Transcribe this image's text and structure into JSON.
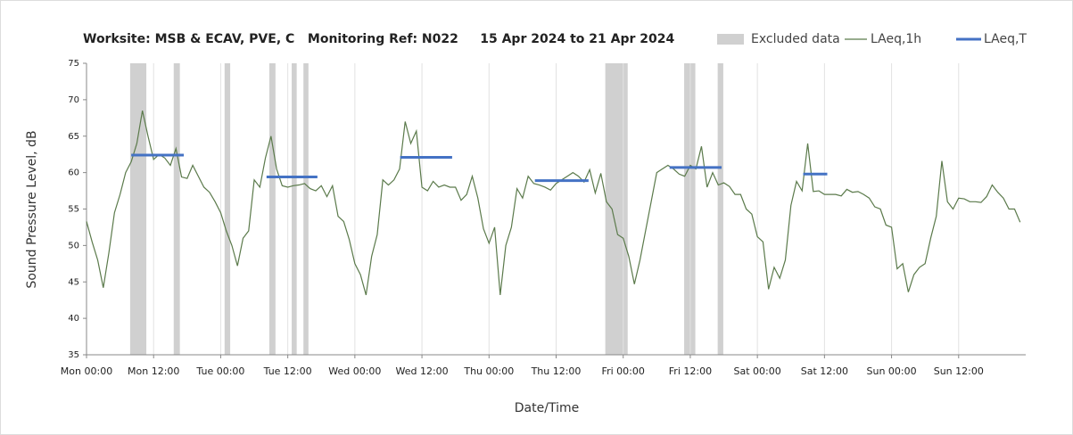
{
  "chart_data": {
    "type": "line",
    "title": "Worksite: MSB & ECAV, PVE, C   Monitoring Ref: N022     15 Apr 2024 to 21 Apr 2024",
    "xlabel": "Date/Time",
    "ylabel": "Sound Pressure Level, dB",
    "xlim": [
      0,
      168
    ],
    "ylim": [
      35,
      75
    ],
    "yticks": [
      35,
      40,
      45,
      50,
      55,
      60,
      65,
      70,
      75
    ],
    "xticks": [
      {
        "value": 0,
        "label": "Mon 00:00"
      },
      {
        "value": 12,
        "label": "Mon 12:00"
      },
      {
        "value": 24,
        "label": "Tue 00:00"
      },
      {
        "value": 36,
        "label": "Tue 12:00"
      },
      {
        "value": 48,
        "label": "Wed 00:00"
      },
      {
        "value": 60,
        "label": "Wed 12:00"
      },
      {
        "value": 72,
        "label": "Thu 00:00"
      },
      {
        "value": 84,
        "label": "Thu 12:00"
      },
      {
        "value": 96,
        "label": "Fri 00:00"
      },
      {
        "value": 108,
        "label": "Fri 12:00"
      },
      {
        "value": 120,
        "label": "Sat 00:00"
      },
      {
        "value": 132,
        "label": "Sat 12:00"
      },
      {
        "value": 144,
        "label": "Sun 00:00"
      },
      {
        "value": 156,
        "label": "Sun 12:00"
      }
    ],
    "grid": "x",
    "x": [
      0,
      1,
      2,
      3,
      4,
      5,
      6,
      7,
      8,
      9,
      10,
      11,
      12,
      13,
      14,
      15,
      16,
      17,
      18,
      19,
      20,
      21,
      22,
      23,
      24,
      25,
      26,
      27,
      28,
      29,
      30,
      31,
      32,
      33,
      34,
      35,
      36,
      37,
      38,
      39,
      40,
      41,
      42,
      43,
      44,
      45,
      46,
      47,
      48,
      49,
      50,
      51,
      52,
      53,
      54,
      55,
      56,
      57,
      58,
      59,
      60,
      61,
      62,
      63,
      64,
      65,
      66,
      67,
      68,
      69,
      70,
      71,
      72,
      73,
      74,
      75,
      76,
      77,
      78,
      79,
      80,
      81,
      82,
      83,
      84,
      85,
      86,
      87,
      88,
      89,
      90,
      91,
      92,
      93,
      94,
      95,
      96,
      97,
      98,
      99,
      100,
      101,
      102,
      103,
      104,
      105,
      106,
      107,
      108,
      109,
      110,
      111,
      112,
      113,
      114,
      115,
      116,
      117,
      118,
      119,
      120,
      121,
      122,
      123,
      124,
      125,
      126,
      127,
      128,
      129,
      130,
      131,
      132,
      133,
      134,
      135,
      136,
      137,
      138,
      139,
      140,
      141,
      142,
      143,
      144,
      145,
      146,
      147,
      148,
      149,
      150,
      151,
      152,
      153,
      154,
      155,
      156,
      157,
      158,
      159,
      160,
      161,
      162,
      163,
      164,
      165,
      166,
      167
    ],
    "series": [
      {
        "name": "LAeq,1h",
        "color": "#5b7a4b",
        "values": [
          53.3,
          50.5,
          48,
          44.2,
          49,
          54.5,
          57,
          60,
          61.5,
          64,
          68.5,
          65,
          61.8,
          62.5,
          62,
          61,
          63.3,
          59.4,
          59.2,
          61,
          59.5,
          58,
          57.3,
          56,
          54.5,
          52,
          50,
          47.2,
          51,
          52,
          59,
          58,
          62,
          65,
          60.5,
          58.2,
          58,
          58.2,
          58.3,
          58.5,
          57.8,
          57.5,
          58.2,
          56.7,
          58.2,
          54,
          53.3,
          50.8,
          47.5,
          46,
          43.2,
          48.5,
          51.5,
          59,
          58.3,
          59,
          60.5,
          67,
          64,
          65.7,
          58,
          57.5,
          58.8,
          58,
          58.3,
          58,
          58,
          56.2,
          57,
          59.5,
          56.5,
          52.3,
          50.3,
          52.5,
          43.2,
          50,
          52.5,
          57.8,
          56.5,
          59.5,
          58.5,
          58.3,
          58,
          57.6,
          58.5,
          59,
          59.5,
          60,
          59.5,
          58.7,
          60.4,
          57.2,
          59.9,
          56,
          55,
          51.5,
          51,
          48.5,
          44.7,
          48,
          52,
          56,
          60,
          60.5,
          61,
          60.5,
          59.8,
          59.5,
          61,
          60.5,
          63.6,
          58,
          60,
          58.3,
          58.6,
          58.1,
          57,
          57,
          55,
          54.3,
          51.2,
          50.5,
          44,
          47,
          45.5,
          48,
          55.5,
          58.8,
          57.5,
          64,
          57.4,
          57.5,
          57,
          57,
          57,
          56.8,
          57.7,
          57.3,
          57.4,
          57,
          56.5,
          55.3,
          55,
          52.8,
          52.5,
          46.8,
          47.5,
          43.6,
          46,
          47,
          47.5,
          51,
          54,
          61.6,
          56,
          55,
          56.5,
          56.4,
          56,
          56,
          55.9,
          56.7,
          58.3,
          57.3,
          56.5,
          55,
          55,
          53.2
        ]
      }
    ],
    "excluded": {
      "name": "Excluded data",
      "color": "#d0d0d0",
      "ranges": [
        [
          7.8,
          10.7
        ],
        [
          15.6,
          16.7
        ],
        [
          24.7,
          25.7
        ],
        [
          32.7,
          33.8
        ],
        [
          36.7,
          37.6
        ],
        [
          38.8,
          39.7
        ],
        [
          92.8,
          96.8
        ],
        [
          106.9,
          108.9
        ],
        [
          112.9,
          113.9
        ]
      ]
    },
    "levels": {
      "name": "LAeq,T",
      "color": "#4472c4",
      "segments": [
        {
          "x": [
            8,
            17.4
          ],
          "value": 62.4
        },
        {
          "x": [
            32.2,
            41.3
          ],
          "value": 59.4
        },
        {
          "x": [
            56.1,
            65.4
          ],
          "value": 62.1
        },
        {
          "x": [
            80.2,
            89.8
          ],
          "value": 58.9
        },
        {
          "x": [
            104.3,
            113.6
          ],
          "value": 60.7
        },
        {
          "x": [
            128.2,
            132.5
          ],
          "value": 59.8
        }
      ]
    }
  }
}
